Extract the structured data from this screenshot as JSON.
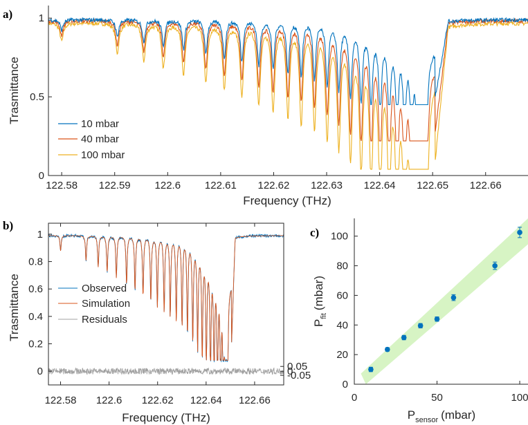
{
  "chart_data": [
    {
      "panel": "a)",
      "type": "line",
      "xlabel": "Frequency (THz)",
      "ylabel": "Trasmittance",
      "xlim": [
        122.5775,
        122.668
      ],
      "ylim": [
        0,
        1.08
      ],
      "xticks": [
        "122.58",
        "122.59",
        "122.6",
        "122.61",
        "122.62",
        "122.63",
        "122.64",
        "122.65",
        "122.66"
      ],
      "yticks": [
        "0",
        "0.5",
        "1"
      ],
      "legend": "bottom-left",
      "band_range": [
        122.5775,
        122.6495
      ],
      "band_edge": 122.6505,
      "lines": [
        122.58,
        122.5905,
        122.5955,
        122.5992,
        122.603,
        122.6072,
        122.6107,
        122.614,
        122.6172,
        122.6199,
        122.6227,
        122.6252,
        122.6277,
        122.6301,
        122.6323,
        122.6345,
        122.6365,
        122.6384,
        122.6401,
        122.6418,
        122.6433,
        122.6447,
        122.646,
        122.6471,
        122.648,
        122.6488
      ],
      "series": [
        {
          "name": "10 mbar",
          "color": "#0072BD",
          "min_transmittance": 0.45,
          "baseline": 0.99
        },
        {
          "name": "40 mbar",
          "color": "#D95319",
          "min_transmittance": 0.22,
          "baseline": 0.985
        },
        {
          "name": "100 mbar",
          "color": "#EDB120",
          "min_transmittance": 0.04,
          "baseline": 0.97
        }
      ]
    },
    {
      "panel": "b)",
      "type": "line",
      "xlabel": "Frequency (THz)",
      "ylabel": "Trasmittance",
      "xlim": [
        122.575,
        122.672
      ],
      "ylim": [
        -0.1,
        1.08
      ],
      "xticks": [
        "122.58",
        "122.6",
        "122.62",
        "122.64",
        "122.66"
      ],
      "yticks": [
        "0",
        "0.2",
        "0.4",
        "0.6",
        "0.8",
        "1"
      ],
      "y2ticks": [
        "0.05",
        "0",
        "-0.05"
      ],
      "legend": "middle-left",
      "series": [
        {
          "name": "Observed",
          "color": "#0072BD"
        },
        {
          "name": "Simulation",
          "color": "#D95319"
        },
        {
          "name": "Residuals",
          "color": "#a0a0a0"
        }
      ]
    },
    {
      "panel": "c)",
      "type": "scatter",
      "xlabel": "P",
      "xlabel_sub": "sensor",
      "xlabel_unit": "(mbar)",
      "ylabel": "P",
      "ylabel_sub": "fit",
      "ylabel_unit": "(mbar)",
      "xlim": [
        0,
        105
      ],
      "ylim": [
        0,
        112
      ],
      "xticks": [
        0,
        50,
        100
      ],
      "yticks": [
        0,
        20,
        40,
        60,
        80,
        100
      ],
      "band_color": "#c9f0b0",
      "points": [
        {
          "x": 10,
          "y": 10,
          "err": 1.5
        },
        {
          "x": 20,
          "y": 23.5,
          "err": 1.2
        },
        {
          "x": 30,
          "y": 31.5,
          "err": 1.5
        },
        {
          "x": 40,
          "y": 39.5,
          "err": 1.5
        },
        {
          "x": 50,
          "y": 44,
          "err": 1.5
        },
        {
          "x": 60,
          "y": 58.5,
          "err": 2
        },
        {
          "x": 85,
          "y": 80,
          "err": 2.5
        },
        {
          "x": 100,
          "y": 102.5,
          "err": 3.5
        }
      ],
      "color": "#0072BD"
    }
  ]
}
